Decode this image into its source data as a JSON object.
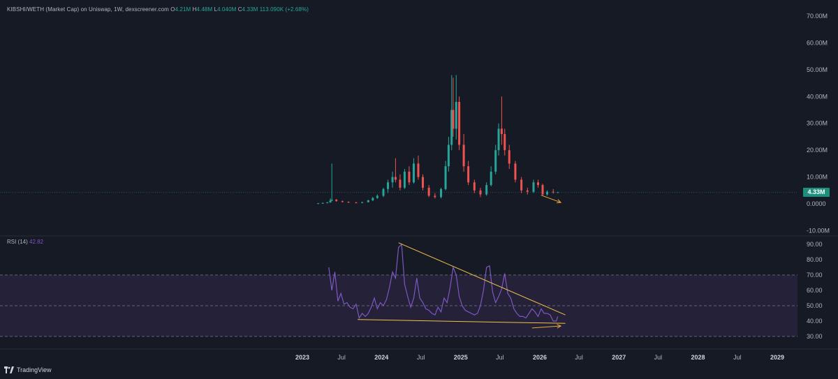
{
  "legend": {
    "title": "KIBSHI/WETH (Market Cap) on Uniswap, 1W, dexscreener.com",
    "o_label": "O",
    "o_value": "4.21M",
    "h_label": "H",
    "h_value": "4.48M",
    "l_label": "L",
    "l_value": "4.040M",
    "c_label": "C",
    "c_value": "4.33M",
    "change": "113.090K (+2.68%)"
  },
  "rsi_legend": {
    "label": "RSI (14)",
    "value": "42.82"
  },
  "price_tag": "4.33M",
  "brand": "TradingView",
  "colors": {
    "background": "#161a25",
    "grid": "#1f2430",
    "up": "#26a69a",
    "down": "#ef5350",
    "rsi": "#7e57c2",
    "rsi_band": "#2a2440",
    "trendline": "#f0c14b",
    "arrow": "#f0a83b",
    "text": "#b2b5be"
  },
  "chart_data": [
    {
      "type": "candlestick",
      "title": "KIBSHI/WETH (Market Cap) on Uniswap, 1W, dexscreener.com",
      "unit": "USD",
      "y_ticks": [
        "70.00M",
        "60.00M",
        "50.00M",
        "40.00M",
        "30.00M",
        "20.00M",
        "10.00M",
        "0.0000",
        "-10.00M"
      ],
      "ylim": [
        -10000000,
        75000000
      ],
      "x_ticks": [
        "2023",
        "Jul",
        "2024",
        "Jul",
        "2025",
        "Jul",
        "2026",
        "Jul",
        "2027",
        "Jul",
        "2028",
        "Jul",
        "2029"
      ],
      "grid": true,
      "last_close": 4330000,
      "candles": [
        {
          "x": "2023-03-15",
          "o": 0.1,
          "h": 0.3,
          "l": 0.0,
          "c": 0.2
        },
        {
          "x": "2023-04-05",
          "o": 0.2,
          "h": 0.5,
          "l": 0.1,
          "c": 0.3
        },
        {
          "x": "2023-04-26",
          "o": 0.3,
          "h": 0.7,
          "l": 0.2,
          "c": 0.5
        },
        {
          "x": "2023-05-10",
          "o": 0.5,
          "h": 2.0,
          "l": 0.4,
          "c": 1.2
        },
        {
          "x": "2023-05-17",
          "o": 1.2,
          "h": 15.0,
          "l": 1.0,
          "c": 1.5
        },
        {
          "x": "2023-06-07",
          "o": 1.5,
          "h": 1.8,
          "l": 0.8,
          "c": 1.0
        },
        {
          "x": "2023-07-05",
          "o": 1.0,
          "h": 1.2,
          "l": 0.5,
          "c": 0.7
        },
        {
          "x": "2023-08-02",
          "o": 0.7,
          "h": 0.9,
          "l": 0.3,
          "c": 0.5
        },
        {
          "x": "2023-09-06",
          "o": 0.5,
          "h": 0.7,
          "l": 0.2,
          "c": 0.4
        },
        {
          "x": "2023-10-04",
          "o": 0.4,
          "h": 0.8,
          "l": 0.2,
          "c": 0.6
        },
        {
          "x": "2023-11-01",
          "o": 0.6,
          "h": 1.5,
          "l": 0.5,
          "c": 1.3
        },
        {
          "x": "2023-11-22",
          "o": 1.3,
          "h": 2.5,
          "l": 1.0,
          "c": 2.2
        },
        {
          "x": "2023-12-13",
          "o": 2.2,
          "h": 3.5,
          "l": 1.8,
          "c": 3.0
        },
        {
          "x": "2024-01-10",
          "o": 3.0,
          "h": 6.0,
          "l": 2.5,
          "c": 5.5
        },
        {
          "x": "2024-01-31",
          "o": 5.5,
          "h": 9.0,
          "l": 4.0,
          "c": 8.0
        },
        {
          "x": "2024-02-21",
          "o": 8.0,
          "h": 12.0,
          "l": 6.0,
          "c": 10.0
        },
        {
          "x": "2024-03-06",
          "o": 10.0,
          "h": 17.0,
          "l": 8.0,
          "c": 9.0
        },
        {
          "x": "2024-03-27",
          "o": 9.0,
          "h": 11.0,
          "l": 5.0,
          "c": 6.0
        },
        {
          "x": "2024-04-17",
          "o": 6.0,
          "h": 13.0,
          "l": 5.5,
          "c": 12.0
        },
        {
          "x": "2024-05-08",
          "o": 12.0,
          "h": 14.0,
          "l": 7.0,
          "c": 8.0
        },
        {
          "x": "2024-05-29",
          "o": 8.0,
          "h": 17.0,
          "l": 7.5,
          "c": 15.0
        },
        {
          "x": "2024-06-19",
          "o": 15.0,
          "h": 18.0,
          "l": 9.0,
          "c": 10.0
        },
        {
          "x": "2024-07-10",
          "o": 10.0,
          "h": 11.0,
          "l": 5.0,
          "c": 6.0
        },
        {
          "x": "2024-08-07",
          "o": 6.0,
          "h": 7.0,
          "l": 2.5,
          "c": 3.0
        },
        {
          "x": "2024-09-04",
          "o": 3.0,
          "h": 4.0,
          "l": 2.0,
          "c": 2.5
        },
        {
          "x": "2024-10-02",
          "o": 2.5,
          "h": 6.0,
          "l": 2.0,
          "c": 5.5
        },
        {
          "x": "2024-10-23",
          "o": 5.5,
          "h": 16.0,
          "l": 5.0,
          "c": 14.0
        },
        {
          "x": "2024-11-06",
          "o": 14.0,
          "h": 25.0,
          "l": 12.0,
          "c": 22.0
        },
        {
          "x": "2024-11-20",
          "o": 22.0,
          "h": 48.0,
          "l": 20.0,
          "c": 35.0
        },
        {
          "x": "2024-11-27",
          "o": 35.0,
          "h": 47.0,
          "l": 25.0,
          "c": 28.0
        },
        {
          "x": "2024-12-11",
          "o": 28.0,
          "h": 48.0,
          "l": 24.0,
          "c": 38.0
        },
        {
          "x": "2024-12-25",
          "o": 38.0,
          "h": 40.0,
          "l": 20.0,
          "c": 22.0
        },
        {
          "x": "2025-01-15",
          "o": 22.0,
          "h": 26.0,
          "l": 12.0,
          "c": 14.0
        },
        {
          "x": "2025-02-05",
          "o": 14.0,
          "h": 16.0,
          "l": 7.0,
          "c": 8.0
        },
        {
          "x": "2025-03-05",
          "o": 8.0,
          "h": 9.0,
          "l": 4.0,
          "c": 5.0
        },
        {
          "x": "2025-04-02",
          "o": 5.0,
          "h": 6.0,
          "l": 2.5,
          "c": 3.5
        },
        {
          "x": "2025-04-30",
          "o": 3.5,
          "h": 8.0,
          "l": 3.0,
          "c": 7.0
        },
        {
          "x": "2025-05-21",
          "o": 7.0,
          "h": 14.0,
          "l": 6.5,
          "c": 12.0
        },
        {
          "x": "2025-06-11",
          "o": 12.0,
          "h": 22.0,
          "l": 11.0,
          "c": 20.0
        },
        {
          "x": "2025-06-25",
          "o": 20.0,
          "h": 30.0,
          "l": 18.0,
          "c": 28.0
        },
        {
          "x": "2025-07-09",
          "o": 28.0,
          "h": 40.0,
          "l": 22.0,
          "c": 26.0
        },
        {
          "x": "2025-07-23",
          "o": 26.0,
          "h": 28.0,
          "l": 18.0,
          "c": 20.0
        },
        {
          "x": "2025-08-13",
          "o": 20.0,
          "h": 22.0,
          "l": 13.0,
          "c": 15.0
        },
        {
          "x": "2025-09-10",
          "o": 15.0,
          "h": 16.0,
          "l": 8.0,
          "c": 9.0
        },
        {
          "x": "2025-10-08",
          "o": 9.0,
          "h": 10.0,
          "l": 4.0,
          "c": 5.0
        },
        {
          "x": "2025-11-05",
          "o": 5.0,
          "h": 6.0,
          "l": 3.5,
          "c": 4.5
        },
        {
          "x": "2025-12-03",
          "o": 4.5,
          "h": 9.0,
          "l": 4.0,
          "c": 8.0
        },
        {
          "x": "2025-12-24",
          "o": 8.0,
          "h": 9.0,
          "l": 6.0,
          "c": 7.0
        },
        {
          "x": "2026-01-14",
          "o": 7.0,
          "h": 7.5,
          "l": 3.0,
          "c": 3.5
        },
        {
          "x": "2026-02-04",
          "o": 3.5,
          "h": 5.0,
          "l": 3.0,
          "c": 4.5
        },
        {
          "x": "2026-03-04",
          "o": 4.5,
          "h": 5.5,
          "l": 3.8,
          "c": 4.2
        },
        {
          "x": "2026-03-25",
          "o": 4.21,
          "h": 4.48,
          "l": 4.04,
          "c": 4.33
        }
      ],
      "candle_units": "millions",
      "annotations": [
        {
          "type": "arrow",
          "from": [
            "2026-01-07",
            3200000
          ],
          "to": [
            "2026-04-08",
            500000
          ]
        }
      ]
    },
    {
      "type": "line",
      "title": "RSI (14)",
      "y_ticks": [
        "90.00",
        "80.00",
        "70.00",
        "60.00",
        "50.00",
        "40.00",
        "30.00"
      ],
      "ylim": [
        25,
        95
      ],
      "band": [
        30,
        70
      ],
      "dashed_levels": [
        70,
        50,
        30
      ],
      "last_value": 42.82,
      "series": [
        {
          "x": [
            "2023-05-03",
            "2023-05-17",
            "2023-05-31",
            "2023-06-14",
            "2023-06-28",
            "2023-07-12",
            "2023-07-26",
            "2023-08-09",
            "2023-08-23",
            "2023-09-06",
            "2023-09-20",
            "2023-10-04",
            "2023-10-18",
            "2023-11-01",
            "2023-11-15",
            "2023-11-29",
            "2023-12-13",
            "2023-12-27",
            "2024-01-10",
            "2024-01-24",
            "2024-02-07",
            "2024-02-21",
            "2024-03-06",
            "2024-03-20",
            "2024-04-03",
            "2024-04-17",
            "2024-05-01",
            "2024-05-15",
            "2024-05-29",
            "2024-06-12",
            "2024-06-26",
            "2024-07-10",
            "2024-07-24",
            "2024-08-07",
            "2024-08-21",
            "2024-09-04",
            "2024-09-18",
            "2024-10-02",
            "2024-10-16",
            "2024-10-30",
            "2024-11-13",
            "2024-11-27",
            "2024-12-11",
            "2024-12-25",
            "2025-01-08",
            "2025-01-22",
            "2025-02-05",
            "2025-02-19",
            "2025-03-05",
            "2025-03-19",
            "2025-04-02",
            "2025-04-16",
            "2025-04-30",
            "2025-05-14",
            "2025-05-28",
            "2025-06-11",
            "2025-06-25",
            "2025-07-09",
            "2025-07-23",
            "2025-08-06",
            "2025-08-20",
            "2025-09-03",
            "2025-09-17",
            "2025-10-01",
            "2025-10-15",
            "2025-10-29",
            "2025-11-12",
            "2025-11-26",
            "2025-12-10",
            "2025-12-24",
            "2026-01-07",
            "2026-01-21",
            "2026-02-04",
            "2026-02-18",
            "2026-03-04",
            "2026-03-18",
            "2026-03-25"
          ],
          "values": [
            75,
            60,
            72,
            53,
            58,
            51,
            52,
            49,
            48,
            51,
            42,
            45,
            43,
            45,
            49,
            55,
            48,
            52,
            50,
            54,
            62,
            72,
            68,
            88,
            90,
            64,
            56,
            49,
            55,
            68,
            55,
            52,
            48,
            47,
            45,
            44,
            49,
            46,
            55,
            52,
            62,
            75,
            70,
            56,
            50,
            47,
            46,
            45,
            44,
            45,
            50,
            60,
            75,
            76,
            59,
            52,
            56,
            61,
            71,
            58,
            55,
            48,
            45,
            43,
            43,
            42,
            45,
            48,
            46,
            43,
            48,
            45,
            45,
            44,
            40,
            40,
            43
          ]
        }
      ],
      "annotations": [
        {
          "type": "trendline",
          "from": [
            "2024-03-20",
            91
          ],
          "to": [
            "2026-04-29",
            44
          ]
        },
        {
          "type": "trendline",
          "from": [
            "2023-09-13",
            41
          ],
          "to": [
            "2026-04-29",
            38.5
          ]
        },
        {
          "type": "arrow",
          "from": [
            "2025-11-26",
            35.5
          ],
          "to": [
            "2026-04-08",
            36.8
          ]
        }
      ]
    }
  ]
}
